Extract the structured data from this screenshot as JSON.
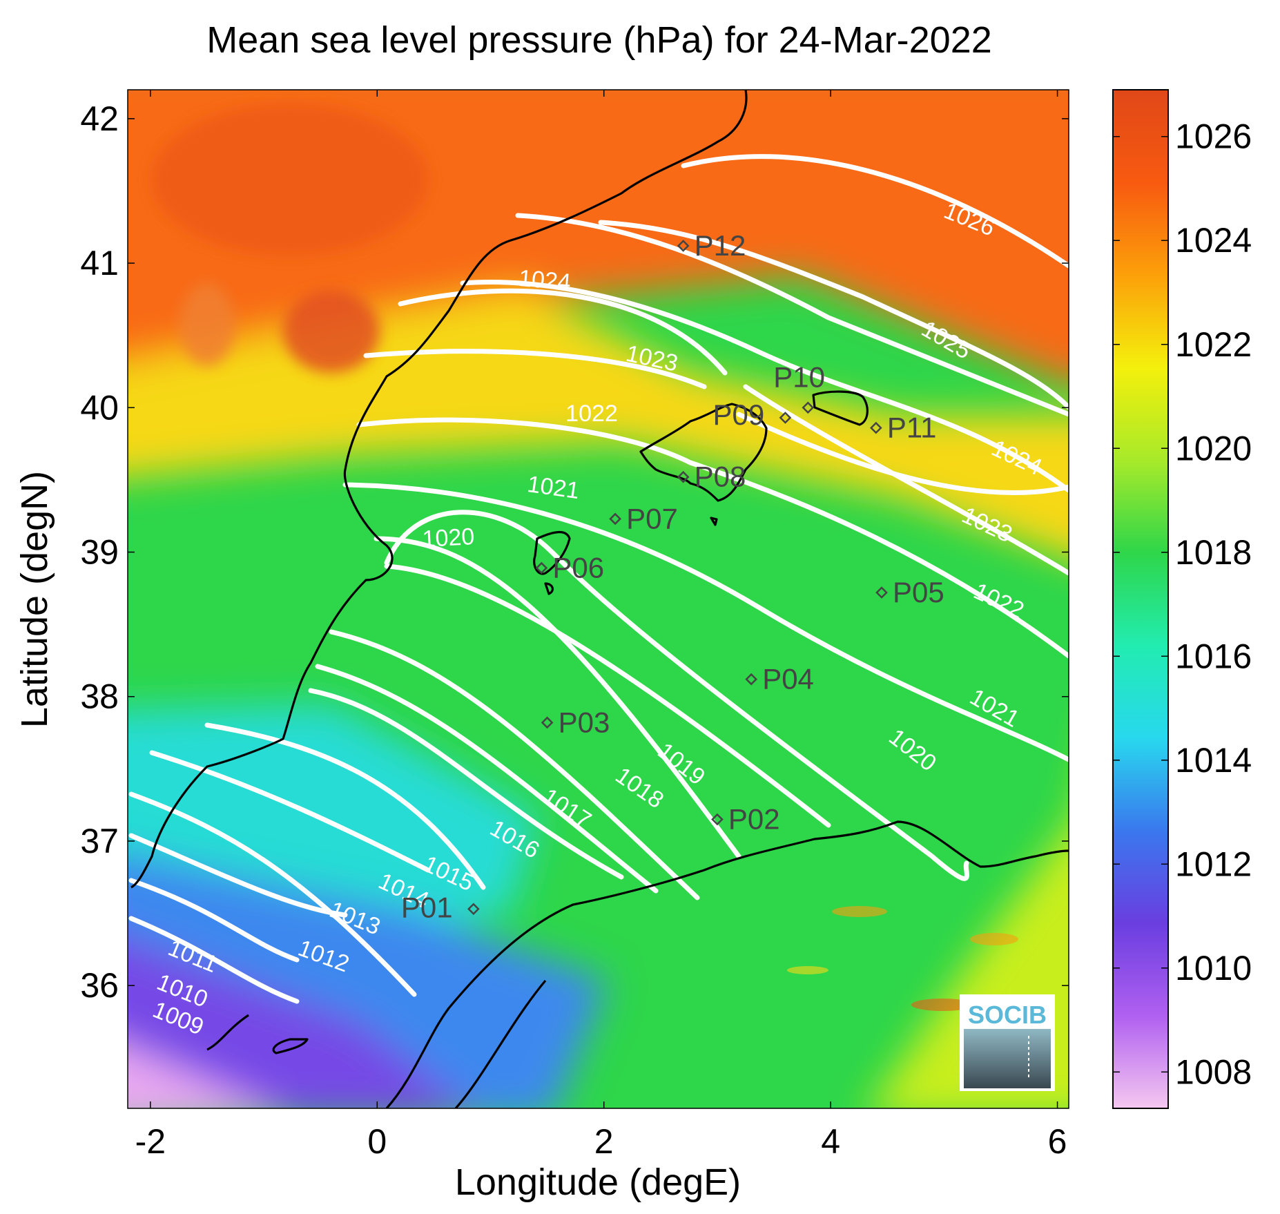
{
  "title": "Mean sea level pressure (hPa) for 24-Mar-2022",
  "xlabel": "Longitude (degE)",
  "ylabel": "Latitude (degN)",
  "xlim": [
    -2.2,
    6.1
  ],
  "ylim": [
    35.15,
    42.2
  ],
  "x_ticks": [
    "-2",
    "0",
    "2",
    "4",
    "6"
  ],
  "y_ticks": [
    "36",
    "37",
    "38",
    "39",
    "40",
    "41",
    "42"
  ],
  "colorbar": {
    "ticks": [
      "1008",
      "1010",
      "1012",
      "1014",
      "1016",
      "1018",
      "1020",
      "1022",
      "1024",
      "1026"
    ],
    "range": [
      1007.3,
      1026.9
    ],
    "colors": [
      "#f5c8f0",
      "#b060f0",
      "#6a3ee0",
      "#3a78ee",
      "#28d8ee",
      "#22ecb0",
      "#2ed64a",
      "#a8ea2a",
      "#f4f00c",
      "#fca00a",
      "#f85a10",
      "#e04818"
    ]
  },
  "chart_data": {
    "type": "map",
    "stations": [
      {
        "label": "P01",
        "lon": 0.85,
        "lat": 36.53
      },
      {
        "label": "P02",
        "lon": 3.0,
        "lat": 37.15
      },
      {
        "label": "P03",
        "lon": 1.5,
        "lat": 37.82
      },
      {
        "label": "P04",
        "lon": 3.3,
        "lat": 38.12
      },
      {
        "label": "P05",
        "lon": 4.45,
        "lat": 38.72
      },
      {
        "label": "P06",
        "lon": 1.45,
        "lat": 38.89
      },
      {
        "label": "P07",
        "lon": 2.1,
        "lat": 39.23
      },
      {
        "label": "P08",
        "lon": 2.7,
        "lat": 39.52
      },
      {
        "label": "P09",
        "lon": 3.6,
        "lat": 39.93
      },
      {
        "label": "P10",
        "lon": 3.8,
        "lat": 40.0
      },
      {
        "label": "P11",
        "lon": 4.4,
        "lat": 39.86
      },
      {
        "label": "P12",
        "lon": 2.7,
        "lat": 41.12
      }
    ],
    "isobar_labels": [
      "1009",
      "1010",
      "1011",
      "1012",
      "1013",
      "1014",
      "1015",
      "1016",
      "1017",
      "1018",
      "1019",
      "1020",
      "1020",
      "1021",
      "1021",
      "1022",
      "1022",
      "1023",
      "1023",
      "1024",
      "1024",
      "1025",
      "1026"
    ]
  },
  "logo": "SOCIB"
}
